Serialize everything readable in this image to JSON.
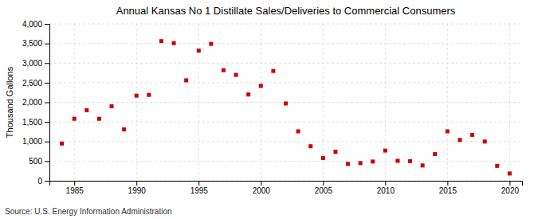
{
  "chart_data": {
    "type": "scatter",
    "title": "Annual Kansas No 1 Distillate Sales/Deliveries to Commercial Consumers",
    "ylabel": "Thousand Gallons",
    "source": "Source: U.S. Energy Information Administration",
    "color": "#cc0000",
    "marker": "square",
    "x": [
      1984,
      1985,
      1986,
      1987,
      1988,
      1989,
      1990,
      1991,
      1992,
      1993,
      1994,
      1995,
      1996,
      1997,
      1998,
      1999,
      2000,
      2001,
      2002,
      2003,
      2004,
      2005,
      2006,
      2007,
      2008,
      2009,
      2010,
      2011,
      2012,
      2013,
      2014,
      2015,
      2016,
      2017,
      2018,
      2019,
      2020
    ],
    "values": [
      950,
      1580,
      1800,
      1580,
      1900,
      1310,
      2170,
      2190,
      3560,
      3510,
      2560,
      3320,
      3490,
      2820,
      2700,
      2200,
      2420,
      2800,
      1970,
      1260,
      880,
      580,
      740,
      430,
      450,
      490,
      770,
      510,
      500,
      390,
      680,
      1260,
      1040,
      1170,
      1000,
      380,
      185
    ],
    "xlim": [
      1983,
      2021
    ],
    "xticks": [
      1985,
      1990,
      1995,
      2000,
      2005,
      2010,
      2015,
      2020
    ],
    "ylim": [
      0,
      4000
    ],
    "yticks": [
      0,
      500,
      {
        "value": 1000,
        "label": "1,000"
      },
      {
        "value": 1500,
        "label": "1,500"
      },
      {
        "value": 2000,
        "label": "2,000"
      },
      {
        "value": 2500,
        "label": "2,500"
      },
      {
        "value": 3000,
        "label": "3,000"
      },
      {
        "value": 3500,
        "label": "3,500"
      },
      {
        "value": 4000,
        "label": "4,000"
      }
    ],
    "grid": true
  }
}
